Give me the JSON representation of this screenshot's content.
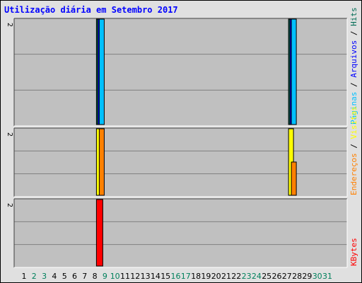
{
  "title": "Utilização diária em Setembro 2017",
  "colors": {
    "hits": "#006b54",
    "files": "#0000ff",
    "pages": "#00c0ff",
    "visits": "#ffff00",
    "sites": "#ff8000",
    "kbytes": "#ff0000",
    "weekend": "#00805c",
    "weekday": "#000000",
    "plot_bg": "#c0c0c0",
    "frame_bg": "#e0e0e0",
    "title": "#0000ff"
  },
  "chart_data": {
    "type": "bar",
    "categories": [
      "1",
      "2",
      "3",
      "4",
      "5",
      "6",
      "7",
      "8",
      "9",
      "10",
      "11",
      "12",
      "13",
      "14",
      "15",
      "16",
      "17",
      "18",
      "19",
      "20",
      "21",
      "22",
      "23",
      "24",
      "25",
      "26",
      "27",
      "28",
      "29",
      "30",
      "31"
    ],
    "weekend_days": [
      "2",
      "3",
      "9",
      "10",
      "16",
      "17",
      "23",
      "24",
      "30",
      "31"
    ],
    "legend_separator": "/",
    "panels": [
      {
        "ymax_label": "2",
        "ylim": [
          0,
          2
        ],
        "legend": [
          "Hits",
          "Arquivos",
          "Páginas"
        ],
        "series": [
          {
            "name": "Hits",
            "values": [
              0,
              0,
              0,
              0,
              0,
              0,
              0,
              0,
              2,
              0,
              0,
              0,
              0,
              0,
              0,
              0,
              0,
              0,
              0,
              0,
              0,
              0,
              0,
              0,
              0,
              0,
              0,
              2,
              0,
              0,
              0
            ]
          },
          {
            "name": "Arquivos",
            "values": [
              0,
              0,
              0,
              0,
              0,
              0,
              0,
              0,
              2,
              0,
              0,
              0,
              0,
              0,
              0,
              0,
              0,
              0,
              0,
              0,
              0,
              0,
              0,
              0,
              0,
              0,
              0,
              2,
              0,
              0,
              0
            ]
          },
          {
            "name": "Páginas",
            "values": [
              0,
              0,
              0,
              0,
              0,
              0,
              0,
              0,
              2,
              0,
              0,
              0,
              0,
              0,
              0,
              0,
              0,
              0,
              0,
              0,
              0,
              0,
              0,
              0,
              0,
              0,
              0,
              2,
              0,
              0,
              0
            ]
          }
        ]
      },
      {
        "ymax_label": "2",
        "ylim": [
          0,
          2
        ],
        "legend": [
          "Visitas",
          "Endereços"
        ],
        "series": [
          {
            "name": "Visitas",
            "values": [
              0,
              0,
              0,
              0,
              0,
              0,
              0,
              0,
              2,
              0,
              0,
              0,
              0,
              0,
              0,
              0,
              0,
              0,
              0,
              0,
              0,
              0,
              0,
              0,
              0,
              0,
              0,
              2,
              0,
              0,
              0
            ]
          },
          {
            "name": "Endereços",
            "values": [
              0,
              0,
              0,
              0,
              0,
              0,
              0,
              0,
              2,
              0,
              0,
              0,
              0,
              0,
              0,
              0,
              0,
              0,
              0,
              0,
              0,
              0,
              0,
              0,
              0,
              0,
              0,
              1,
              0,
              0,
              0
            ]
          }
        ]
      },
      {
        "ymax_label": "2",
        "ylim": [
          0,
          2
        ],
        "legend": [
          "KBytes"
        ],
        "series": [
          {
            "name": "KBytes",
            "values": [
              0,
              0,
              0,
              0,
              0,
              0,
              0,
              0,
              2,
              0,
              0,
              0,
              0,
              0,
              0,
              0,
              0,
              0,
              0,
              0,
              0,
              0,
              0,
              0,
              0,
              0,
              0,
              0,
              0,
              0,
              0
            ]
          }
        ]
      }
    ],
    "grid": true
  }
}
